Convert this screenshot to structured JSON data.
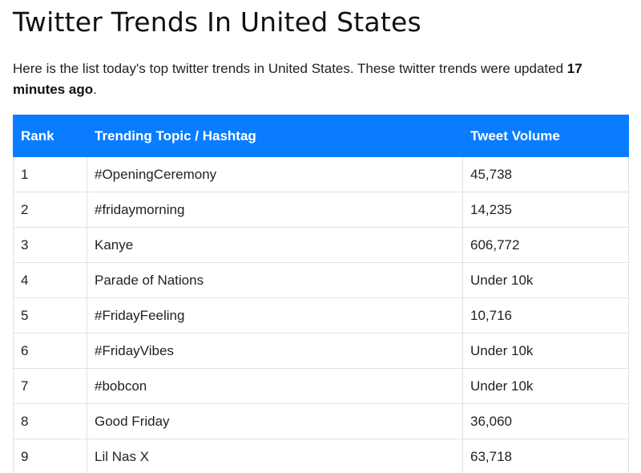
{
  "page": {
    "title": "Twitter Trends In United States",
    "intro_text": "Here is the list today's top twitter trends in United States. These twitter trends were updated ",
    "intro_bold": "17 minutes ago",
    "intro_end": "."
  },
  "table": {
    "headers": {
      "rank": "Rank",
      "topic": "Trending Topic / Hashtag",
      "volume": "Tweet Volume"
    },
    "rows": [
      {
        "rank": "1",
        "topic": "#OpeningCeremony",
        "volume": "45,738"
      },
      {
        "rank": "2",
        "topic": "#fridaymorning",
        "volume": "14,235"
      },
      {
        "rank": "3",
        "topic": "Kanye",
        "volume": "606,772"
      },
      {
        "rank": "4",
        "topic": "Parade of Nations",
        "volume": "Under 10k"
      },
      {
        "rank": "5",
        "topic": "#FridayFeeling",
        "volume": "10,716"
      },
      {
        "rank": "6",
        "topic": "#FridayVibes",
        "volume": "Under 10k"
      },
      {
        "rank": "7",
        "topic": "#bobcon",
        "volume": "Under 10k"
      },
      {
        "rank": "8",
        "topic": "Good Friday",
        "volume": "36,060"
      },
      {
        "rank": "9",
        "topic": "Lil Nas X",
        "volume": "63,718"
      }
    ]
  },
  "colors": {
    "header_bg": "#0a7cff",
    "header_text": "#ffffff",
    "border": "#dee2e6"
  }
}
